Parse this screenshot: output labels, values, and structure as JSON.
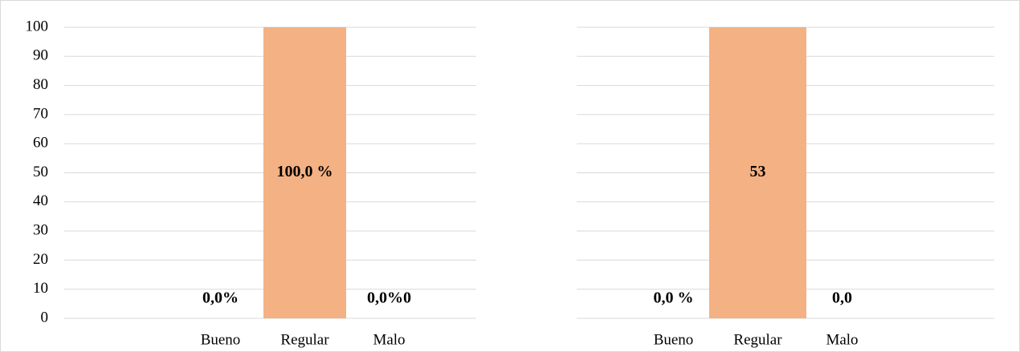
{
  "chart_data": [
    {
      "type": "bar",
      "categories": [
        "Bueno",
        "Regular",
        "Malo"
      ],
      "values": [
        0,
        100,
        0
      ],
      "value_labels": [
        "0,0%",
        "100,0 %",
        "0,0%0"
      ],
      "color": "#f4b183",
      "ylim": [
        0,
        100
      ],
      "yticks": [
        0,
        10,
        20,
        30,
        40,
        50,
        60,
        70,
        80,
        90,
        100
      ],
      "grid": true,
      "ytick_labels": true
    },
    {
      "type": "bar",
      "categories": [
        "Bueno",
        "Regular",
        "Malo"
      ],
      "values": [
        0,
        53,
        0
      ],
      "value_labels": [
        "0,0 %",
        "53",
        "0,0"
      ],
      "color": "#f4b183",
      "ylim": [
        0,
        53
      ],
      "yticks": [
        0,
        5.3,
        10.6,
        15.9,
        21.2,
        26.5,
        31.8,
        37.1,
        42.4,
        47.7,
        53
      ],
      "grid": true,
      "ytick_labels": false
    }
  ]
}
